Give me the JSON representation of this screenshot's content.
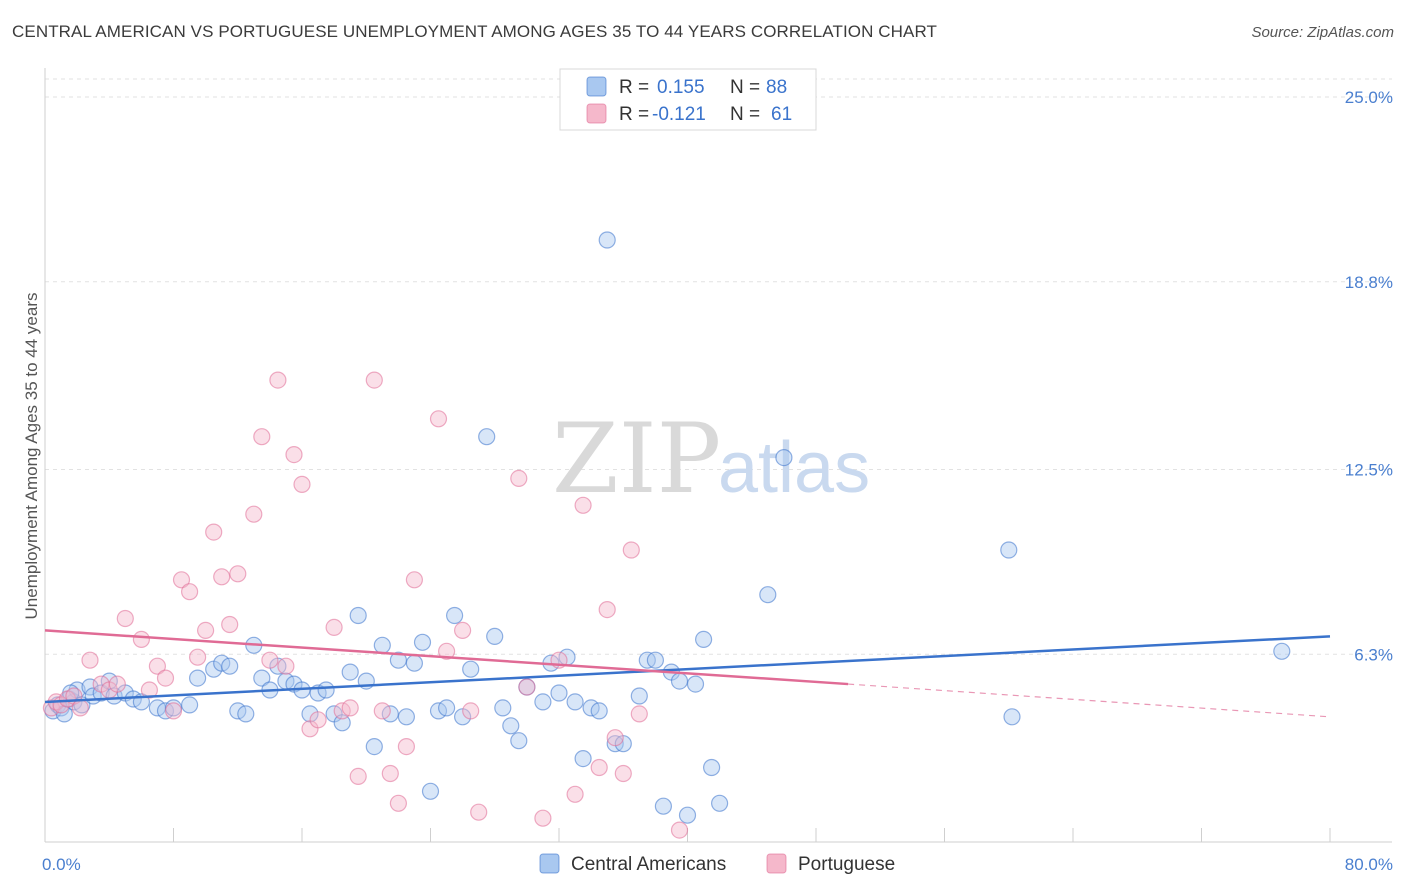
{
  "title": "CENTRAL AMERICAN VS PORTUGUESE UNEMPLOYMENT AMONG AGES 35 TO 44 YEARS CORRELATION CHART",
  "source": "Source: ZipAtlas.com",
  "watermark": {
    "zip": "ZIP",
    "atlas": "atlas"
  },
  "legend": {
    "rows": [
      {
        "r_label": "R =",
        "r_value": "0.155",
        "n_label": "N =",
        "n_value": "88",
        "color": "#a9c8f0"
      },
      {
        "r_label": "R =",
        "r_value": "-0.121",
        "n_label": "N =",
        "n_value": "61",
        "color": "#f5b8cb"
      }
    ]
  },
  "bottom_legend": [
    "Central Americans",
    "Portuguese"
  ],
  "chart_data": {
    "type": "scatter",
    "title": "CENTRAL AMERICAN VS PORTUGUESE UNEMPLOYMENT AMONG AGES 35 TO 44 YEARS CORRELATION CHART",
    "xlabel": "",
    "ylabel": "Unemployment Among Ages 35 to 44 years",
    "xlim": [
      0,
      80
    ],
    "ylim": [
      0,
      25
    ],
    "x_tick_labels": [
      "0.0%",
      "80.0%"
    ],
    "y_ticks": [
      6.3,
      12.5,
      18.8,
      25.0
    ],
    "y_tick_labels": [
      "6.3%",
      "12.5%",
      "18.8%",
      "25.0%"
    ],
    "grid": "horizontal dashed",
    "colors": {
      "blue": "#3a73cc",
      "pink": "#e06b95",
      "blue_fill": "#a9c8f0",
      "pink_fill": "#f5b8cb"
    },
    "series": [
      {
        "name": "Central Americans",
        "color": "#3a73cc",
        "points": [
          [
            0.5,
            4.4
          ],
          [
            0.8,
            4.6
          ],
          [
            1.0,
            4.5
          ],
          [
            1.2,
            4.3
          ],
          [
            1.5,
            4.8
          ],
          [
            1.8,
            4.7
          ],
          [
            2.0,
            5.1
          ],
          [
            2.3,
            4.6
          ],
          [
            2.8,
            5.2
          ],
          [
            3.0,
            4.9
          ],
          [
            3.5,
            5.0
          ],
          [
            4.0,
            5.4
          ],
          [
            4.3,
            4.9
          ],
          [
            5.0,
            5.0
          ],
          [
            5.5,
            4.8
          ],
          [
            6.0,
            4.7
          ],
          [
            7.0,
            4.5
          ],
          [
            7.5,
            4.4
          ],
          [
            8.0,
            4.5
          ],
          [
            9.0,
            4.6
          ],
          [
            9.5,
            5.5
          ],
          [
            10.5,
            5.8
          ],
          [
            11.0,
            6.0
          ],
          [
            11.5,
            5.9
          ],
          [
            12.0,
            4.4
          ],
          [
            12.5,
            4.3
          ],
          [
            13.0,
            6.6
          ],
          [
            13.5,
            5.5
          ],
          [
            14.0,
            5.1
          ],
          [
            14.5,
            5.9
          ],
          [
            15.0,
            5.4
          ],
          [
            15.5,
            5.3
          ],
          [
            16.0,
            5.1
          ],
          [
            16.5,
            4.3
          ],
          [
            17.0,
            5.0
          ],
          [
            17.5,
            5.1
          ],
          [
            18.0,
            4.3
          ],
          [
            18.5,
            4.0
          ],
          [
            19.0,
            5.7
          ],
          [
            19.5,
            7.6
          ],
          [
            20.0,
            5.4
          ],
          [
            20.5,
            3.2
          ],
          [
            21.0,
            6.6
          ],
          [
            21.5,
            4.3
          ],
          [
            22.0,
            6.1
          ],
          [
            22.5,
            4.2
          ],
          [
            23.0,
            6.0
          ],
          [
            23.5,
            6.7
          ],
          [
            24.0,
            1.7
          ],
          [
            24.5,
            4.4
          ],
          [
            25.0,
            4.5
          ],
          [
            25.5,
            7.6
          ],
          [
            26.0,
            4.2
          ],
          [
            26.5,
            5.8
          ],
          [
            27.5,
            13.6
          ],
          [
            28.0,
            6.9
          ],
          [
            28.5,
            4.5
          ],
          [
            29.0,
            3.9
          ],
          [
            29.5,
            3.4
          ],
          [
            30.0,
            5.2
          ],
          [
            31.0,
            4.7
          ],
          [
            31.5,
            6.0
          ],
          [
            32.0,
            5.0
          ],
          [
            32.5,
            6.2
          ],
          [
            33.0,
            4.7
          ],
          [
            33.5,
            2.8
          ],
          [
            34.0,
            4.5
          ],
          [
            34.5,
            4.4
          ],
          [
            35.0,
            20.2
          ],
          [
            35.5,
            3.3
          ],
          [
            36.0,
            3.3
          ],
          [
            37.0,
            4.9
          ],
          [
            37.5,
            6.1
          ],
          [
            38.0,
            6.1
          ],
          [
            38.5,
            1.2
          ],
          [
            39.0,
            5.7
          ],
          [
            39.5,
            5.4
          ],
          [
            40.0,
            0.9
          ],
          [
            40.5,
            5.3
          ],
          [
            41.0,
            6.8
          ],
          [
            41.5,
            2.5
          ],
          [
            42.0,
            1.3
          ],
          [
            45.0,
            8.3
          ],
          [
            46.0,
            12.9
          ],
          [
            60.0,
            9.8
          ],
          [
            60.2,
            4.2
          ],
          [
            77.0,
            6.4
          ],
          [
            1.6,
            5.0
          ]
        ]
      },
      {
        "name": "Portuguese",
        "color": "#e06b95",
        "points": [
          [
            0.4,
            4.5
          ],
          [
            0.7,
            4.7
          ],
          [
            1.0,
            4.6
          ],
          [
            1.4,
            4.8
          ],
          [
            1.8,
            4.9
          ],
          [
            2.2,
            4.5
          ],
          [
            2.8,
            6.1
          ],
          [
            3.5,
            5.3
          ],
          [
            4.0,
            5.1
          ],
          [
            4.5,
            5.3
          ],
          [
            5.0,
            7.5
          ],
          [
            6.0,
            6.8
          ],
          [
            6.5,
            5.1
          ],
          [
            7.0,
            5.9
          ],
          [
            7.5,
            5.5
          ],
          [
            8.0,
            4.4
          ],
          [
            8.5,
            8.8
          ],
          [
            9.0,
            8.4
          ],
          [
            9.5,
            6.2
          ],
          [
            10.0,
            7.1
          ],
          [
            10.5,
            10.4
          ],
          [
            11.0,
            8.9
          ],
          [
            11.5,
            7.3
          ],
          [
            12.0,
            9.0
          ],
          [
            13.0,
            11.0
          ],
          [
            13.5,
            13.6
          ],
          [
            14.0,
            6.1
          ],
          [
            14.5,
            15.5
          ],
          [
            15.0,
            5.9
          ],
          [
            15.5,
            13.0
          ],
          [
            16.0,
            12.0
          ],
          [
            16.5,
            3.8
          ],
          [
            17.0,
            4.1
          ],
          [
            18.0,
            7.2
          ],
          [
            18.5,
            4.4
          ],
          [
            19.0,
            4.5
          ],
          [
            19.5,
            2.2
          ],
          [
            20.5,
            15.5
          ],
          [
            21.0,
            4.4
          ],
          [
            21.5,
            2.3
          ],
          [
            22.0,
            1.3
          ],
          [
            22.5,
            3.2
          ],
          [
            23.0,
            8.8
          ],
          [
            24.5,
            14.2
          ],
          [
            25.0,
            6.4
          ],
          [
            26.0,
            7.1
          ],
          [
            26.5,
            4.4
          ],
          [
            27.0,
            1.0
          ],
          [
            29.5,
            12.2
          ],
          [
            30.0,
            5.2
          ],
          [
            31.0,
            0.8
          ],
          [
            32.0,
            6.1
          ],
          [
            33.0,
            1.6
          ],
          [
            33.5,
            11.3
          ],
          [
            34.5,
            2.5
          ],
          [
            35.0,
            7.8
          ],
          [
            35.5,
            3.5
          ],
          [
            36.0,
            2.3
          ],
          [
            36.5,
            9.8
          ],
          [
            37.0,
            4.3
          ],
          [
            39.5,
            0.4
          ]
        ]
      }
    ],
    "trend_lines": [
      {
        "series": "Central Americans",
        "from": [
          0,
          4.7
        ],
        "to": [
          80,
          6.9
        ],
        "style": "solid"
      },
      {
        "series": "Portuguese",
        "from": [
          0,
          7.1
        ],
        "to": [
          50,
          5.3
        ],
        "style": "solid"
      },
      {
        "series": "Portuguese",
        "from": [
          50,
          5.3
        ],
        "to": [
          80,
          4.2
        ],
        "style": "dashed"
      }
    ]
  }
}
